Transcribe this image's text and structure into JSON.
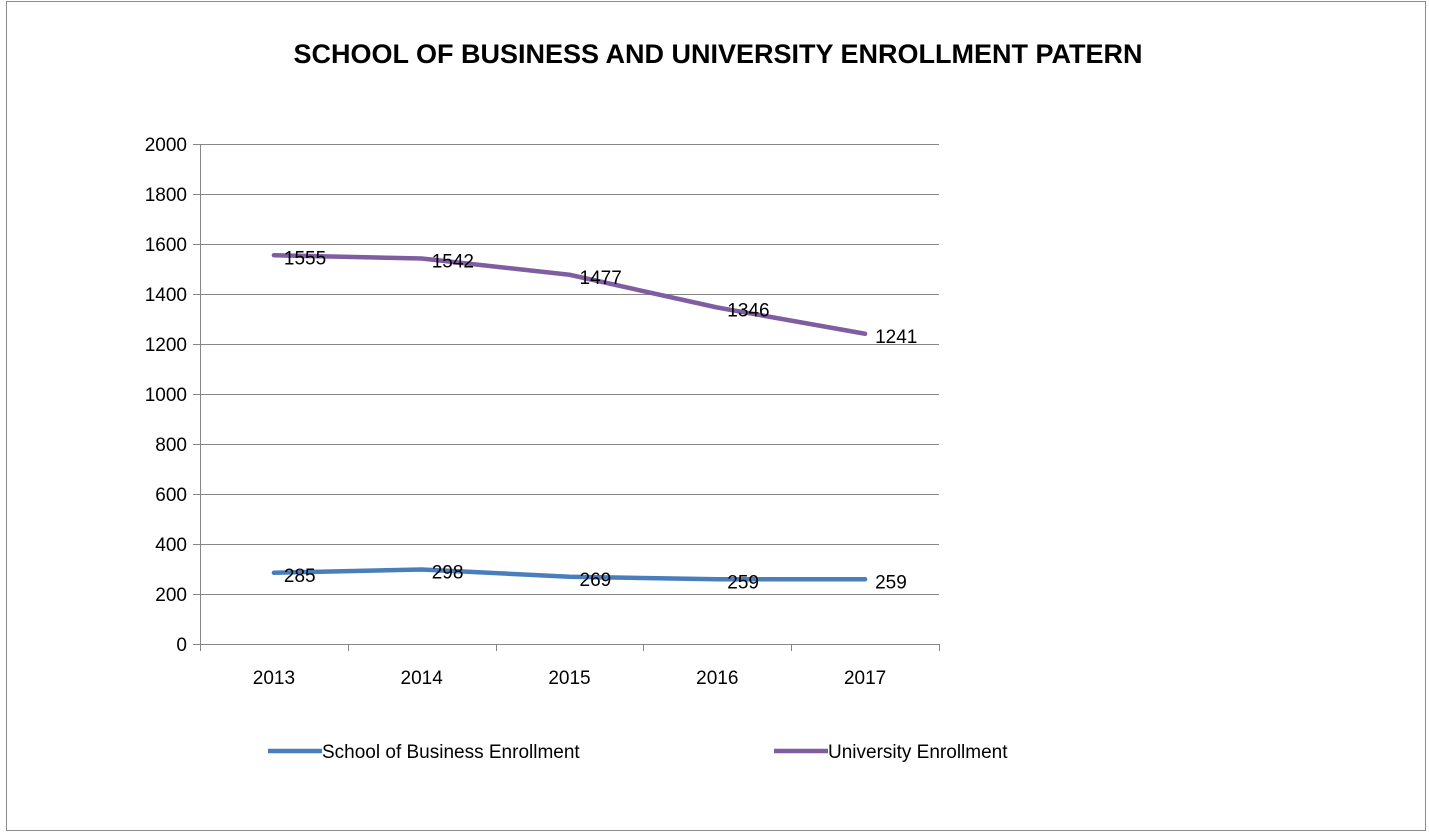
{
  "chart_data": {
    "type": "line",
    "title": "SCHOOL OF BUSINESS AND UNIVERSITY ENROLLMENT PATERN",
    "xlabel": "",
    "ylabel": "",
    "categories": [
      "2013",
      "2014",
      "2015",
      "2016",
      "2017"
    ],
    "ylim": [
      0,
      2000
    ],
    "yticks": [
      0,
      200,
      400,
      600,
      800,
      1000,
      1200,
      1400,
      1600,
      1800,
      2000
    ],
    "grid": true,
    "legend_position": "bottom",
    "series": [
      {
        "name": "School of Business Enrollment",
        "values": [
          285,
          298,
          269,
          259,
          259
        ],
        "color": "#4a7ebb"
      },
      {
        "name": "University Enrollment",
        "values": [
          1555,
          1542,
          1477,
          1346,
          1241
        ],
        "color": "#7e5ea0"
      }
    ]
  },
  "colors": {
    "gridline": "#868686",
    "axis": "#868686",
    "frame": "#8c8c8c"
  }
}
